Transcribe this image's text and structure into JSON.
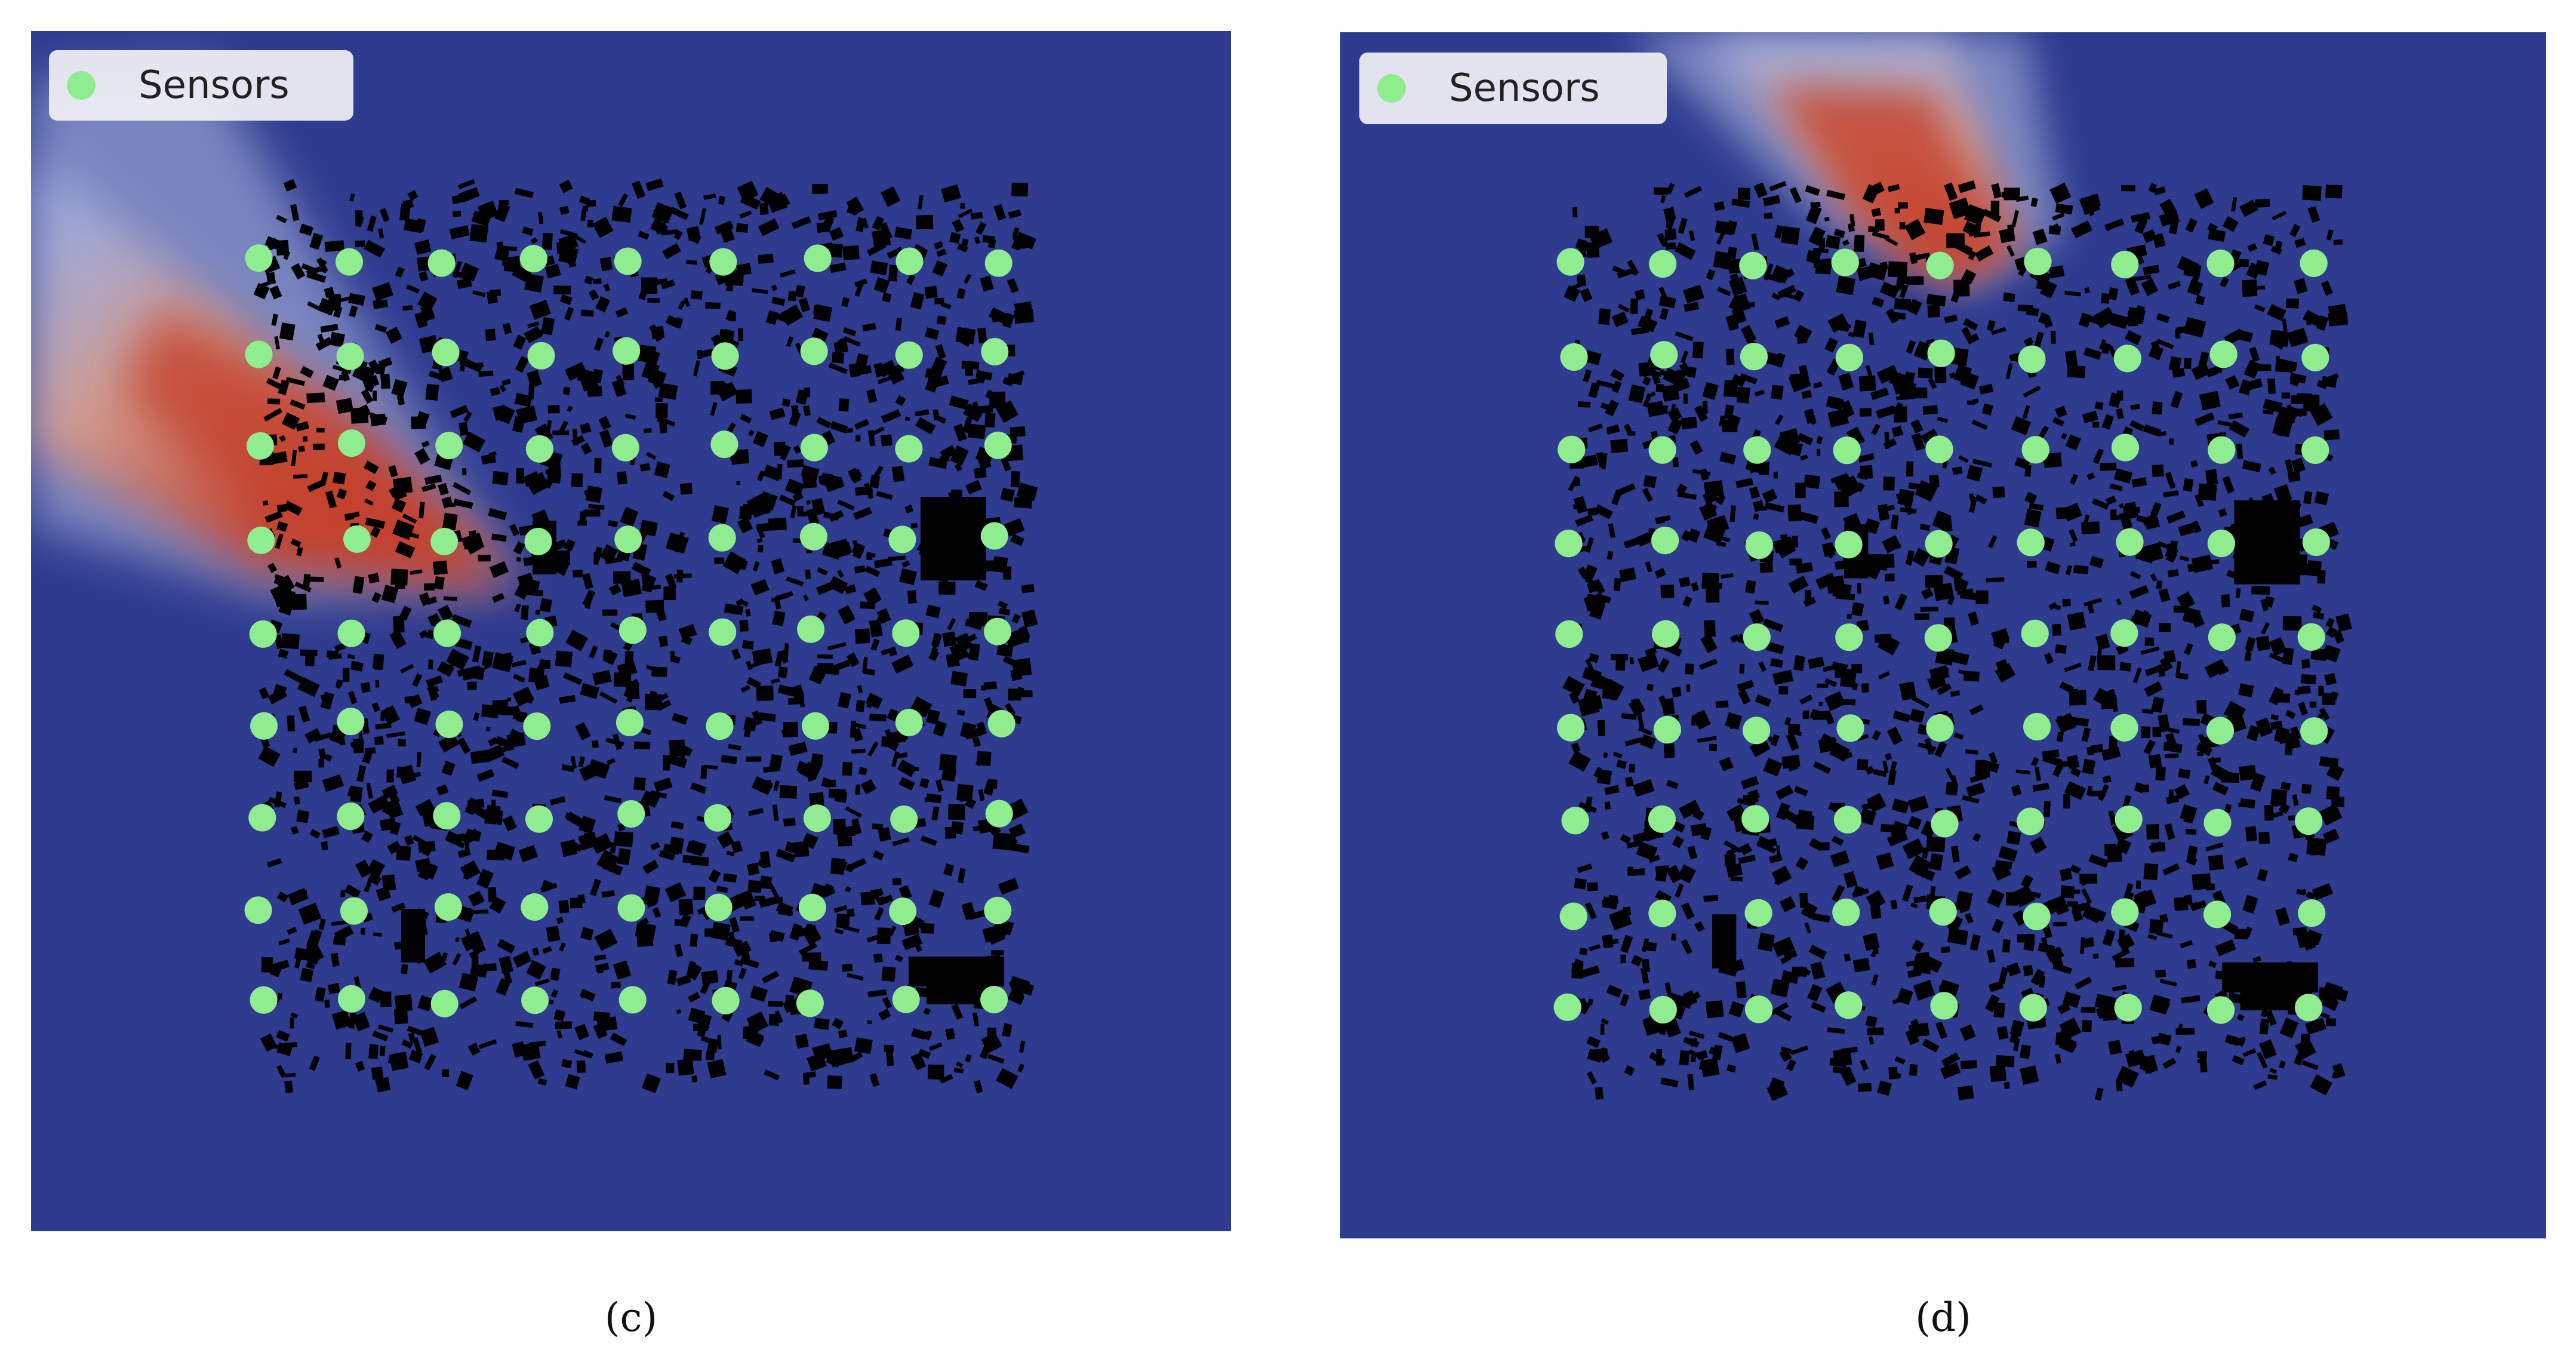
{
  "figure": {
    "panels": [
      {
        "id": "c",
        "caption": "(c)",
        "legend_label": "Sensors",
        "plume_direction": "upper-left"
      },
      {
        "id": "d",
        "caption": "(d)",
        "legend_label": "Sensors",
        "plume_direction": "top"
      }
    ],
    "sensor_grid": {
      "columns": 9,
      "rows": 9
    },
    "colors": {
      "background_field": "#2f3b8f",
      "plume_high": "#c4402a",
      "plume_mid": "#e0a08a",
      "plume_low": "#b7c3e8",
      "buildings": "#000000",
      "sensor": "#8fec8f"
    }
  }
}
